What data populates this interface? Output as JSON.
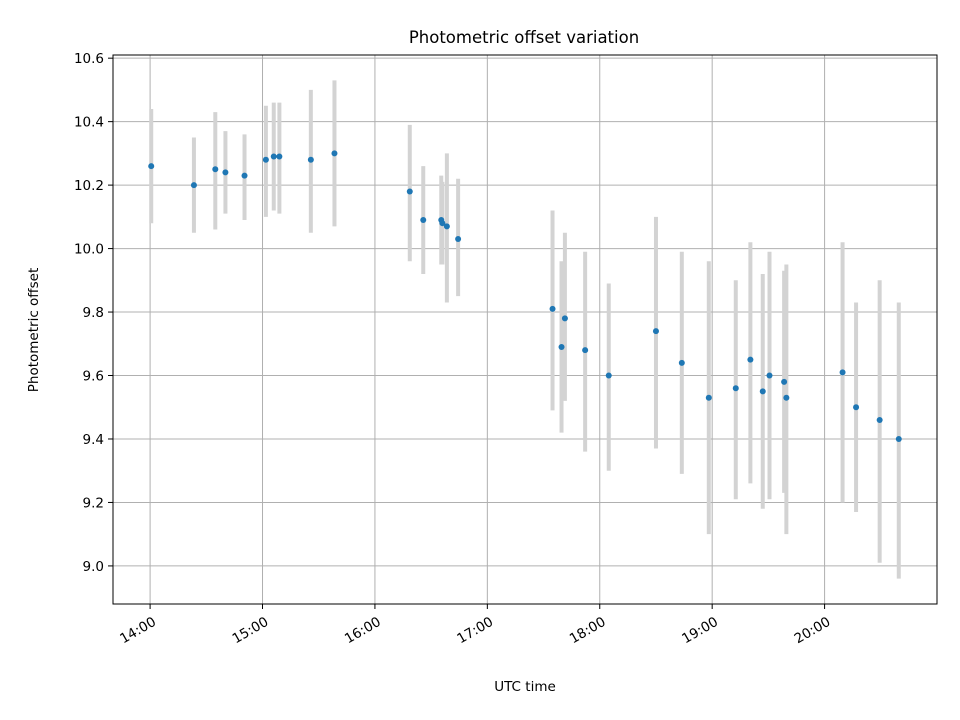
{
  "chart_data": {
    "type": "scatter",
    "title": "Photometric offset variation",
    "xlabel": "UTC time",
    "ylabel": "Photometric offset",
    "grid": true,
    "xlim_hours": [
      13.67,
      21.0
    ],
    "ylim": [
      8.88,
      10.61
    ],
    "x_ticks": [
      {
        "hour": 14,
        "label": "14:00"
      },
      {
        "hour": 15,
        "label": "15:00"
      },
      {
        "hour": 16,
        "label": "16:00"
      },
      {
        "hour": 17,
        "label": "17:00"
      },
      {
        "hour": 18,
        "label": "18:00"
      },
      {
        "hour": 19,
        "label": "19:00"
      },
      {
        "hour": 20,
        "label": "20:00"
      }
    ],
    "y_ticks": [
      {
        "value": 9.0,
        "label": "9.0"
      },
      {
        "value": 9.2,
        "label": "9.2"
      },
      {
        "value": 9.4,
        "label": "9.4"
      },
      {
        "value": 9.6,
        "label": "9.6"
      },
      {
        "value": 9.8,
        "label": "9.8"
      },
      {
        "value": 10.0,
        "label": "10.0"
      },
      {
        "value": 10.2,
        "label": "10.2"
      },
      {
        "value": 10.4,
        "label": "10.4"
      },
      {
        "value": 10.6,
        "label": "10.6"
      }
    ],
    "colors": {
      "point": "#1f77b4",
      "errorbar": "#d3d3d3",
      "grid": "#b0b0b0"
    },
    "points": [
      {
        "t": 14.01,
        "y": 10.26,
        "lo": 10.08,
        "hi": 10.44
      },
      {
        "t": 14.39,
        "y": 10.2,
        "lo": 10.05,
        "hi": 10.35
      },
      {
        "t": 14.58,
        "y": 10.25,
        "lo": 10.06,
        "hi": 10.43
      },
      {
        "t": 14.67,
        "y": 10.24,
        "lo": 10.11,
        "hi": 10.37
      },
      {
        "t": 14.84,
        "y": 10.23,
        "lo": 10.09,
        "hi": 10.36
      },
      {
        "t": 15.03,
        "y": 10.28,
        "lo": 10.1,
        "hi": 10.45
      },
      {
        "t": 15.1,
        "y": 10.29,
        "lo": 10.12,
        "hi": 10.46
      },
      {
        "t": 15.15,
        "y": 10.29,
        "lo": 10.11,
        "hi": 10.46
      },
      {
        "t": 15.43,
        "y": 10.28,
        "lo": 10.05,
        "hi": 10.5
      },
      {
        "t": 15.64,
        "y": 10.3,
        "lo": 10.07,
        "hi": 10.53
      },
      {
        "t": 16.31,
        "y": 10.18,
        "lo": 9.96,
        "hi": 10.39
      },
      {
        "t": 16.43,
        "y": 10.09,
        "lo": 9.92,
        "hi": 10.26
      },
      {
        "t": 16.59,
        "y": 10.09,
        "lo": 9.95,
        "hi": 10.23
      },
      {
        "t": 16.6,
        "y": 10.08,
        "lo": 9.95,
        "hi": 10.21
      },
      {
        "t": 16.64,
        "y": 10.07,
        "lo": 9.83,
        "hi": 10.3
      },
      {
        "t": 16.74,
        "y": 10.03,
        "lo": 9.85,
        "hi": 10.22
      },
      {
        "t": 17.58,
        "y": 9.81,
        "lo": 9.49,
        "hi": 10.12
      },
      {
        "t": 17.66,
        "y": 9.69,
        "lo": 9.42,
        "hi": 9.96
      },
      {
        "t": 17.69,
        "y": 9.78,
        "lo": 9.52,
        "hi": 10.05
      },
      {
        "t": 17.87,
        "y": 9.68,
        "lo": 9.36,
        "hi": 9.99
      },
      {
        "t": 18.08,
        "y": 9.6,
        "lo": 9.3,
        "hi": 9.89
      },
      {
        "t": 18.5,
        "y": 9.74,
        "lo": 9.37,
        "hi": 10.1
      },
      {
        "t": 18.73,
        "y": 9.64,
        "lo": 9.29,
        "hi": 9.99
      },
      {
        "t": 18.97,
        "y": 9.53,
        "lo": 9.1,
        "hi": 9.96
      },
      {
        "t": 19.21,
        "y": 9.56,
        "lo": 9.21,
        "hi": 9.9
      },
      {
        "t": 19.34,
        "y": 9.65,
        "lo": 9.26,
        "hi": 10.02
      },
      {
        "t": 19.45,
        "y": 9.55,
        "lo": 9.18,
        "hi": 9.92
      },
      {
        "t": 19.51,
        "y": 9.6,
        "lo": 9.21,
        "hi": 9.99
      },
      {
        "t": 19.64,
        "y": 9.58,
        "lo": 9.23,
        "hi": 9.93
      },
      {
        "t": 19.66,
        "y": 9.53,
        "lo": 9.1,
        "hi": 9.95
      },
      {
        "t": 20.16,
        "y": 9.61,
        "lo": 9.2,
        "hi": 10.02
      },
      {
        "t": 20.28,
        "y": 9.5,
        "lo": 9.17,
        "hi": 9.83
      },
      {
        "t": 20.49,
        "y": 9.46,
        "lo": 9.01,
        "hi": 9.9
      },
      {
        "t": 20.66,
        "y": 9.4,
        "lo": 8.96,
        "hi": 9.83
      }
    ]
  }
}
